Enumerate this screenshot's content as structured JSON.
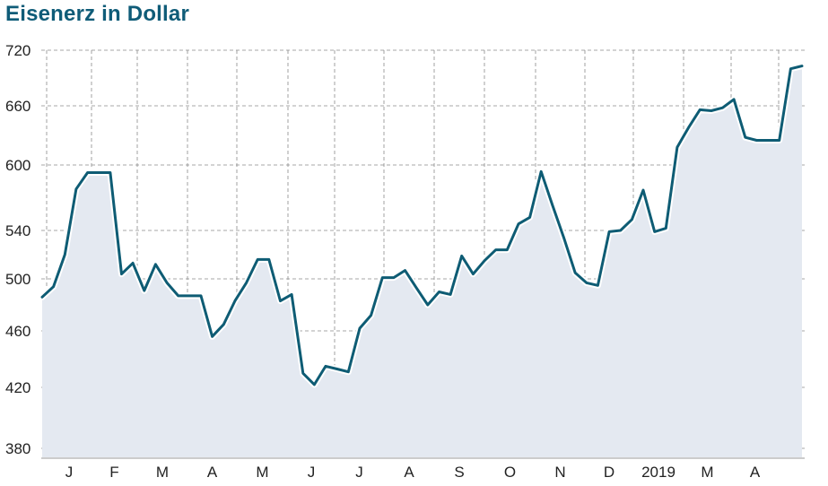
{
  "chart_data": {
    "type": "area",
    "title": "Eisenerz in Dollar",
    "xlabel": "",
    "ylabel": "",
    "ylim": [
      380,
      720
    ],
    "yticks": [
      "720",
      "660",
      "600",
      "540",
      "500",
      "460",
      "420",
      "380"
    ],
    "xticks": [
      "J",
      "F",
      "M",
      "A",
      "M",
      "J",
      "J",
      "A",
      "S",
      "O",
      "N",
      "D",
      "2019",
      "M",
      "A"
    ],
    "grid": true,
    "series": [
      {
        "values": [
          486,
          494,
          520,
          578,
          593,
          593,
          593,
          504,
          513,
          491,
          512,
          497,
          487,
          487,
          487,
          456,
          465,
          483,
          497,
          516,
          516,
          483,
          488,
          430,
          422,
          435,
          433,
          431,
          462,
          472,
          501,
          501,
          507,
          493,
          480,
          490,
          488,
          519,
          504,
          515,
          524,
          524,
          546,
          552,
          594,
          563,
          534,
          505,
          497,
          495,
          539,
          540,
          550,
          577,
          539,
          542,
          618,
          638,
          656,
          655,
          658,
          667,
          628,
          625,
          625,
          625,
          700,
          703
        ],
        "color": "#0e5c74",
        "fill": "#e4e9f1"
      }
    ]
  }
}
